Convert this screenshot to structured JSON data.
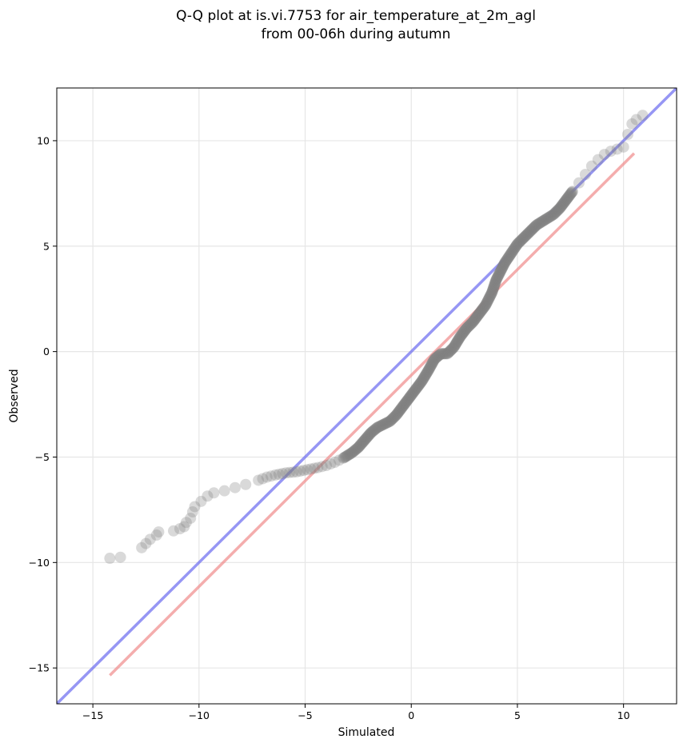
{
  "chart_data": {
    "type": "scatter",
    "title": "Q-Q plot at is.vi.7753 for air_temperature_at_2m_agl",
    "subtitle": "from 00-06h during autumn",
    "xlabel": "Simulated",
    "ylabel": "Observed",
    "xlim": [
      -16.7,
      12.5
    ],
    "ylim": [
      -16.7,
      12.5
    ],
    "xticks": [
      -15,
      -10,
      -5,
      0,
      5,
      10
    ],
    "yticks": [
      -15,
      -10,
      -5,
      0,
      5,
      10
    ],
    "xtick_labels": [
      "−15",
      "−10",
      "−5",
      "0",
      "5",
      "10"
    ],
    "ytick_labels": [
      "−15",
      "−10",
      "−5",
      "0",
      "5",
      "10"
    ],
    "grid": true,
    "qq_points": [
      [
        -14.2,
        -9.8
      ],
      [
        -13.7,
        -9.75
      ],
      [
        -12.7,
        -9.3
      ],
      [
        -12.5,
        -9.1
      ],
      [
        -12.3,
        -8.9
      ],
      [
        -12.0,
        -8.7
      ],
      [
        -11.9,
        -8.55
      ],
      [
        -11.2,
        -8.5
      ],
      [
        -10.9,
        -8.4
      ],
      [
        -10.7,
        -8.3
      ],
      [
        -10.6,
        -8.1
      ],
      [
        -10.4,
        -7.9
      ],
      [
        -10.3,
        -7.6
      ],
      [
        -10.2,
        -7.35
      ],
      [
        -9.9,
        -7.1
      ],
      [
        -9.6,
        -6.85
      ],
      [
        -9.3,
        -6.7
      ],
      [
        -8.8,
        -6.6
      ],
      [
        -8.3,
        -6.45
      ],
      [
        -7.8,
        -6.3
      ],
      [
        -7.2,
        -6.1
      ],
      [
        -6.8,
        -5.95
      ],
      [
        -6.4,
        -5.85
      ],
      [
        -5.9,
        -5.75
      ],
      [
        -5.4,
        -5.7
      ],
      [
        -4.9,
        -5.6
      ],
      [
        -4.4,
        -5.5
      ],
      [
        -4.0,
        -5.4
      ],
      [
        -3.6,
        -5.25
      ],
      [
        -3.2,
        -5.05
      ],
      [
        -2.8,
        -4.8
      ],
      [
        -2.5,
        -4.55
      ],
      [
        -2.2,
        -4.2
      ],
      [
        -1.9,
        -3.85
      ],
      [
        -1.6,
        -3.6
      ],
      [
        -1.3,
        -3.45
      ],
      [
        -1.0,
        -3.3
      ],
      [
        -0.7,
        -3.0
      ],
      [
        -0.4,
        -2.6
      ],
      [
        -0.1,
        -2.2
      ],
      [
        0.2,
        -1.8
      ],
      [
        0.5,
        -1.4
      ],
      [
        0.8,
        -0.9
      ],
      [
        1.1,
        -0.35
      ],
      [
        1.4,
        -0.1
      ],
      [
        1.7,
        -0.1
      ],
      [
        2.0,
        0.2
      ],
      [
        2.3,
        0.7
      ],
      [
        2.6,
        1.1
      ],
      [
        2.9,
        1.4
      ],
      [
        3.2,
        1.8
      ],
      [
        3.5,
        2.2
      ],
      [
        3.8,
        2.8
      ],
      [
        4.0,
        3.4
      ],
      [
        4.2,
        3.8
      ],
      [
        4.4,
        4.2
      ],
      [
        4.6,
        4.5
      ],
      [
        4.8,
        4.8
      ],
      [
        5.0,
        5.1
      ],
      [
        5.3,
        5.4
      ],
      [
        5.6,
        5.7
      ],
      [
        5.9,
        6.0
      ],
      [
        6.3,
        6.25
      ],
      [
        6.7,
        6.5
      ],
      [
        7.0,
        6.8
      ],
      [
        7.3,
        7.2
      ],
      [
        7.6,
        7.6
      ],
      [
        7.9,
        8.0
      ],
      [
        8.2,
        8.4
      ],
      [
        8.5,
        8.8
      ],
      [
        8.8,
        9.1
      ],
      [
        9.1,
        9.35
      ],
      [
        9.4,
        9.5
      ],
      [
        9.7,
        9.6
      ],
      [
        10.0,
        9.7
      ],
      [
        10.2,
        10.3
      ],
      [
        10.4,
        10.8
      ],
      [
        10.6,
        11.0
      ],
      [
        10.9,
        11.2
      ]
    ],
    "reference_lines": [
      {
        "name": "1:1",
        "color": "#6a6af0",
        "x": [
          -16.7,
          12.5
        ],
        "y": [
          -16.7,
          12.5
        ]
      },
      {
        "name": "fit",
        "color": "#f08a8a",
        "x": [
          -14.2,
          10.5
        ],
        "y": [
          -15.35,
          9.4
        ]
      }
    ],
    "point_color": "#808080"
  }
}
